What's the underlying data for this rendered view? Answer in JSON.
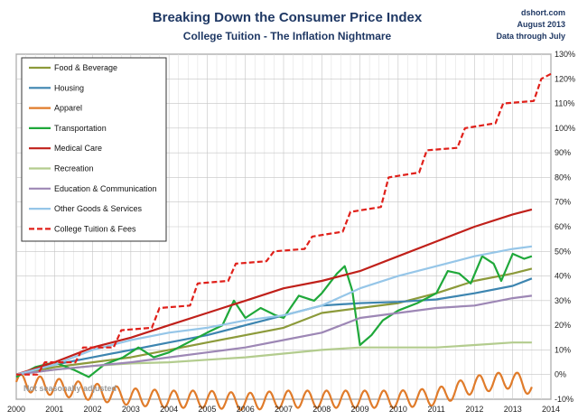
{
  "chart_data": {
    "type": "line",
    "title": "Breaking Down the Consumer Price Index",
    "subtitle": "College Tuition  - The Inflation Nightmare",
    "source": "dshort.com",
    "date": "August 2013",
    "data_through": "Data through July",
    "note": "Not seasonally adjusted",
    "x_ticks": [
      "2000",
      "2001",
      "2002",
      "2003",
      "2004",
      "2005",
      "2006",
      "2007",
      "2008",
      "2009",
      "2010",
      "2011",
      "2012",
      "2013",
      "2014"
    ],
    "y_ticks": [
      "-10%",
      "0%",
      "10%",
      "20%",
      "30%",
      "40%",
      "50%",
      "60%",
      "70%",
      "80%",
      "90%",
      "100%",
      "110%",
      "120%",
      "130%"
    ],
    "xlim": [
      2000,
      2014
    ],
    "ylim": [
      -10,
      130
    ],
    "grid": true,
    "legend_position": "top-left",
    "series": [
      {
        "name": "Food & Beverage",
        "color": "#8c9a3a",
        "dashed": false,
        "points": [
          [
            2000,
            0
          ],
          [
            2001,
            3
          ],
          [
            2002,
            5
          ],
          [
            2003,
            7
          ],
          [
            2004,
            10
          ],
          [
            2005,
            13
          ],
          [
            2006,
            16
          ],
          [
            2007,
            19
          ],
          [
            2008,
            25
          ],
          [
            2009,
            27
          ],
          [
            2010,
            29
          ],
          [
            2011,
            33
          ],
          [
            2012,
            38
          ],
          [
            2013,
            41
          ],
          [
            2013.5,
            43
          ]
        ]
      },
      {
        "name": "Housing",
        "color": "#3d85b0",
        "dashed": false,
        "points": [
          [
            2000,
            0
          ],
          [
            2001,
            4
          ],
          [
            2002,
            7
          ],
          [
            2003,
            10
          ],
          [
            2004,
            13
          ],
          [
            2005,
            16
          ],
          [
            2006,
            20
          ],
          [
            2007,
            24
          ],
          [
            2008,
            28
          ],
          [
            2009,
            29
          ],
          [
            2010,
            29.5
          ],
          [
            2011,
            30.5
          ],
          [
            2012,
            33
          ],
          [
            2013,
            36
          ],
          [
            2013.5,
            39
          ]
        ]
      },
      {
        "name": "Apparel",
        "color": "#e07b2a",
        "dashed": false,
        "seasonal": {
          "amplitude": 3.5,
          "period": 0.5
        },
        "points": [
          [
            2000,
            -3
          ],
          [
            2001,
            -5
          ],
          [
            2002,
            -7
          ],
          [
            2003,
            -9
          ],
          [
            2004,
            -10
          ],
          [
            2005,
            -10
          ],
          [
            2006,
            -11
          ],
          [
            2007,
            -10
          ],
          [
            2008,
            -10
          ],
          [
            2009,
            -10
          ],
          [
            2010,
            -10
          ],
          [
            2011,
            -9
          ],
          [
            2012,
            -4
          ],
          [
            2013,
            -2
          ],
          [
            2013.5,
            -5
          ]
        ]
      },
      {
        "name": "Transportation",
        "color": "#1fa83a",
        "dashed": false,
        "points": [
          [
            2000,
            -1
          ],
          [
            2000.5,
            3
          ],
          [
            2001,
            5
          ],
          [
            2001.5,
            2
          ],
          [
            2001.9,
            -1
          ],
          [
            2002.3,
            4
          ],
          [
            2002.8,
            7
          ],
          [
            2003.2,
            11
          ],
          [
            2003.6,
            7
          ],
          [
            2004,
            9
          ],
          [
            2004.5,
            13
          ],
          [
            2005,
            17
          ],
          [
            2005.4,
            20
          ],
          [
            2005.7,
            30
          ],
          [
            2006,
            23
          ],
          [
            2006.4,
            27
          ],
          [
            2006.8,
            24
          ],
          [
            2007,
            23
          ],
          [
            2007.4,
            32
          ],
          [
            2007.8,
            30
          ],
          [
            2008,
            33
          ],
          [
            2008.4,
            41
          ],
          [
            2008.6,
            44
          ],
          [
            2008.8,
            34
          ],
          [
            2009,
            12
          ],
          [
            2009.3,
            16
          ],
          [
            2009.6,
            22
          ],
          [
            2010,
            26
          ],
          [
            2010.5,
            29
          ],
          [
            2011,
            33
          ],
          [
            2011.3,
            42
          ],
          [
            2011.6,
            41
          ],
          [
            2011.9,
            37
          ],
          [
            2012.2,
            48
          ],
          [
            2012.5,
            45
          ],
          [
            2012.7,
            38
          ],
          [
            2013,
            49
          ],
          [
            2013.3,
            47
          ],
          [
            2013.5,
            48
          ]
        ]
      },
      {
        "name": "Medical Care",
        "color": "#c0201a",
        "dashed": false,
        "points": [
          [
            2000,
            0
          ],
          [
            2001,
            5
          ],
          [
            2002,
            11
          ],
          [
            2003,
            15
          ],
          [
            2004,
            20
          ],
          [
            2005,
            25
          ],
          [
            2006,
            30
          ],
          [
            2007,
            35
          ],
          [
            2008,
            38
          ],
          [
            2009,
            42
          ],
          [
            2010,
            48
          ],
          [
            2011,
            54
          ],
          [
            2012,
            60
          ],
          [
            2013,
            65
          ],
          [
            2013.5,
            67
          ]
        ]
      },
      {
        "name": "Recreation",
        "color": "#b3cc8e",
        "dashed": false,
        "points": [
          [
            2000,
            0
          ],
          [
            2001,
            2
          ],
          [
            2002,
            3.5
          ],
          [
            2003,
            4.5
          ],
          [
            2004,
            5
          ],
          [
            2005,
            6
          ],
          [
            2006,
            7
          ],
          [
            2007,
            8.5
          ],
          [
            2008,
            10
          ],
          [
            2009,
            11
          ],
          [
            2010,
            11
          ],
          [
            2011,
            11
          ],
          [
            2012,
            12
          ],
          [
            2013,
            13
          ],
          [
            2013.5,
            13
          ]
        ]
      },
      {
        "name": "Education & Communication",
        "color": "#9d87b5",
        "dashed": false,
        "points": [
          [
            2000,
            0
          ],
          [
            2001,
            2
          ],
          [
            2002,
            3.5
          ],
          [
            2003,
            5
          ],
          [
            2004,
            7
          ],
          [
            2005,
            9
          ],
          [
            2006,
            11
          ],
          [
            2007,
            14
          ],
          [
            2008,
            17
          ],
          [
            2009,
            23
          ],
          [
            2010,
            25
          ],
          [
            2011,
            27
          ],
          [
            2012,
            28
          ],
          [
            2013,
            31
          ],
          [
            2013.5,
            32
          ]
        ]
      },
      {
        "name": "Other Goods & Services",
        "color": "#96c6e8",
        "dashed": false,
        "points": [
          [
            2000,
            0
          ],
          [
            2001,
            4
          ],
          [
            2002,
            10
          ],
          [
            2003,
            14
          ],
          [
            2004,
            17
          ],
          [
            2005,
            19
          ],
          [
            2006,
            22
          ],
          [
            2007,
            24
          ],
          [
            2008,
            28
          ],
          [
            2009,
            35
          ],
          [
            2010,
            40
          ],
          [
            2011,
            44
          ],
          [
            2012,
            48
          ],
          [
            2013,
            51
          ],
          [
            2013.5,
            52
          ]
        ]
      },
      {
        "name": "College Tuition & Fees",
        "color": "#e0201a",
        "dashed": true,
        "points": [
          [
            2000,
            0
          ],
          [
            2000.55,
            0
          ],
          [
            2000.75,
            5
          ],
          [
            2001.55,
            5
          ],
          [
            2001.75,
            11
          ],
          [
            2002.55,
            11
          ],
          [
            2002.75,
            18
          ],
          [
            2003.55,
            19
          ],
          [
            2003.75,
            27
          ],
          [
            2004.55,
            28
          ],
          [
            2004.75,
            37
          ],
          [
            2005.55,
            38
          ],
          [
            2005.75,
            45
          ],
          [
            2006.55,
            46
          ],
          [
            2006.75,
            50
          ],
          [
            2007.55,
            51
          ],
          [
            2007.75,
            56
          ],
          [
            2008.55,
            58
          ],
          [
            2008.75,
            66
          ],
          [
            2009.55,
            68
          ],
          [
            2009.75,
            80
          ],
          [
            2010.55,
            82
          ],
          [
            2010.75,
            91
          ],
          [
            2011.55,
            92
          ],
          [
            2011.75,
            100
          ],
          [
            2012.55,
            102
          ],
          [
            2012.75,
            110
          ],
          [
            2013.55,
            111
          ],
          [
            2013.75,
            120
          ],
          [
            2014,
            122
          ]
        ]
      }
    ]
  }
}
